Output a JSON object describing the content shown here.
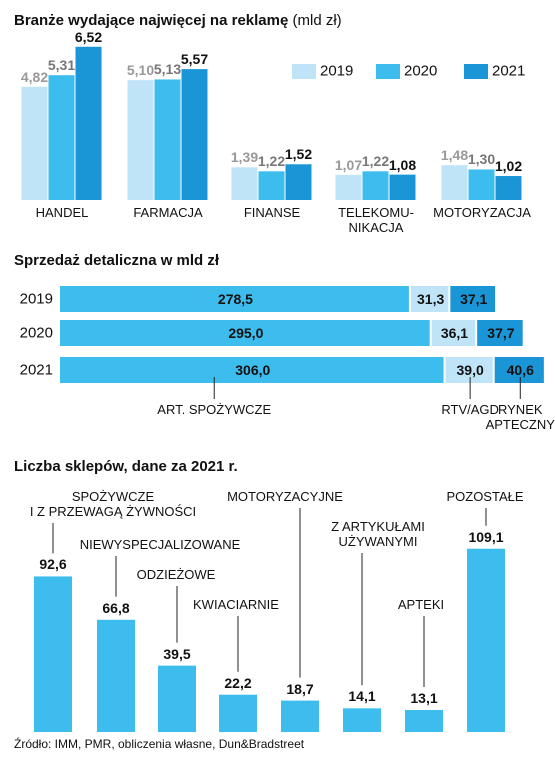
{
  "chart_data": [
    {
      "type": "grouped-bar",
      "title": "Branże wydające najwięcej na reklamę",
      "subtitle": "(mld zł)",
      "categories": [
        "HANDEL",
        "FARMACJA",
        "FINANSE",
        "TELEKOMU-\nNIKACJA",
        "MOTORYZACJA"
      ],
      "series": [
        {
          "name": "2019",
          "color": "#bfe3f7",
          "label_color": "#999999",
          "values": [
            4.82,
            5.1,
            1.39,
            1.07,
            1.48
          ],
          "value_labels": [
            "4,82",
            "5,10",
            "1,39",
            "1,07",
            "1,48"
          ]
        },
        {
          "name": "2020",
          "color": "#3dbdee",
          "label_color": "#777777",
          "values": [
            5.31,
            5.13,
            1.22,
            1.22,
            1.3
          ],
          "value_labels": [
            "5,31",
            "5,13",
            "1,22",
            "1,22",
            "1,30"
          ]
        },
        {
          "name": "2021",
          "color": "#1a95d6",
          "label_color": "#111111",
          "values": [
            6.52,
            5.57,
            1.52,
            1.08,
            1.02
          ],
          "value_labels": [
            "6,52",
            "5,57",
            "1,52",
            "1,08",
            "1,02"
          ]
        }
      ],
      "legend": "top-right"
    },
    {
      "type": "stacked-hbar",
      "title": "Sprzedaż detaliczna w mld zł",
      "categories": [
        "2019",
        "2020",
        "2021"
      ],
      "series": [
        {
          "name": "ART. SPOŻYWCZE",
          "color": "#3dbdee",
          "values": [
            278.5,
            295.0,
            306.0
          ],
          "value_labels": [
            "278,5",
            "295,0",
            "306,0"
          ]
        },
        {
          "name": "RTV/AGD",
          "color": "#bfe3f7",
          "values": [
            31.3,
            36.1,
            39.0
          ],
          "value_labels": [
            "31,3",
            "36,1",
            "39,0"
          ]
        },
        {
          "name": "RYNEK\nAPTECZNY",
          "color": "#1a95d6",
          "values": [
            37.1,
            37.7,
            40.6
          ],
          "value_labels": [
            "37,1",
            "37,7",
            "40,6"
          ]
        }
      ]
    },
    {
      "type": "bar",
      "title": "Liczba sklepów, dane za 2021 r.",
      "categories": [
        "SPOŻYWCZE\nI Z PRZEWAGĄ ŻYWNOŚCI",
        "NIEWYSPECJALIZOWANE",
        "ODZIEŻOWE",
        "KWIACIARNIE",
        "MOTORYZACYJNE",
        "Z ARTYKUŁAMI\nUŻYWANYMI",
        "APTEKI",
        "POZOSTAŁE"
      ],
      "values": [
        92.6,
        66.8,
        39.5,
        22.2,
        18.7,
        14.1,
        13.1,
        109.1
      ],
      "value_labels": [
        "92,6",
        "66,8",
        "39,5",
        "22,2",
        "18,7",
        "14,1",
        "13,1",
        "109,1"
      ],
      "color": "#3dbdee"
    }
  ],
  "source": "Źródło: IMM, PMR, obliczenia własne, Dun&Bradstreet"
}
